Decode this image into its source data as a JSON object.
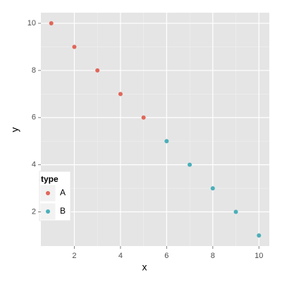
{
  "chart_data": {
    "type": "scatter",
    "x_label": "x",
    "y_label": "y",
    "xlim": [
      0.55,
      10.45
    ],
    "ylim": [
      0.55,
      10.45
    ],
    "xticks": [
      2,
      4,
      6,
      8,
      10
    ],
    "yticks": [
      2,
      4,
      6,
      8,
      10
    ],
    "grid": true,
    "legend_title": "type",
    "legend_position": "bottom-left",
    "series": [
      {
        "name": "A",
        "color": "#e0675a",
        "x": [
          1,
          2,
          3,
          4,
          5
        ],
        "values": [
          10,
          9,
          8,
          7,
          6
        ]
      },
      {
        "name": "B",
        "color": "#4aafba",
        "x": [
          6,
          7,
          8,
          9,
          10
        ],
        "values": [
          5,
          4,
          3,
          2,
          1
        ]
      }
    ]
  }
}
